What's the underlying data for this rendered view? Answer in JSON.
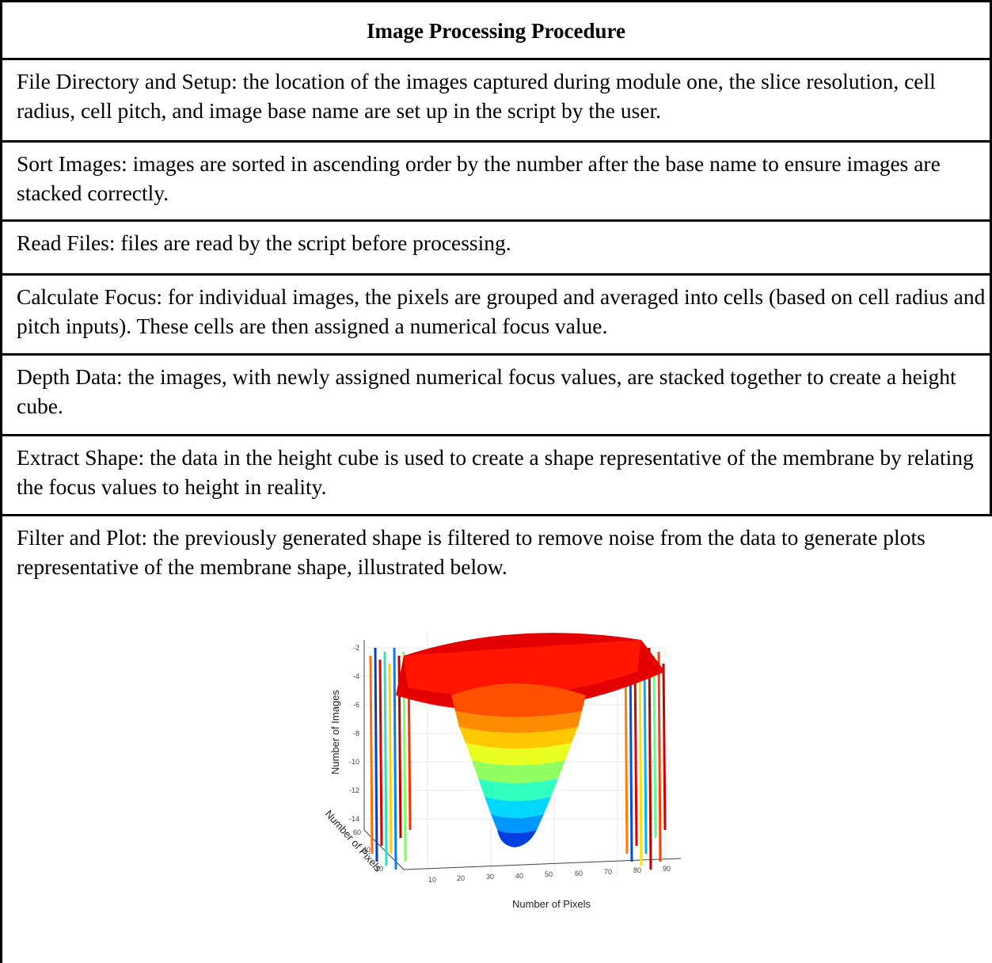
{
  "table": {
    "title": "Image Processing Procedure",
    "steps": [
      "File Directory and Setup: the location of the images captured during module one, the slice resolution, cell radius, cell pitch, and image base name are set up in the script by the user.",
      "Sort Images: images are sorted in ascending order by the number after the base name to ensure images are stacked correctly.",
      "Read Files: files are read by the script before processing.",
      "Calculate Focus: for individual images, the pixels are grouped and averaged into cells (based on cell radius and pitch inputs). These cells are then assigned a numerical focus value.",
      "Depth Data: the images, with newly assigned numerical focus values, are stacked together to create a height cube.",
      "Extract Shape: the data in the height cube is used to create a shape representative of the membrane by relating the focus values to height in reality.",
      "Filter and Plot: the previously generated shape is filtered to remove noise from the data to generate plots representative of the membrane shape, illustrated below."
    ]
  },
  "figure": {
    "zlabel": "Number of Images",
    "ylabel": "Number of Pixels",
    "xlabel": "Number of Pixels",
    "z_ticks": [
      "-2",
      "-4",
      "-6",
      "-8",
      "-10",
      "-12",
      "-14"
    ],
    "y_ticks": [
      "60",
      "40",
      "20"
    ],
    "x_ticks": [
      "10",
      "20",
      "30",
      "40",
      "50",
      "60",
      "70",
      "80",
      "90"
    ],
    "colormap": [
      "#0030d8",
      "#0090ff",
      "#00d0ff",
      "#40ffb0",
      "#c0ff40",
      "#ffe000",
      "#ff8000",
      "#e00000"
    ]
  }
}
